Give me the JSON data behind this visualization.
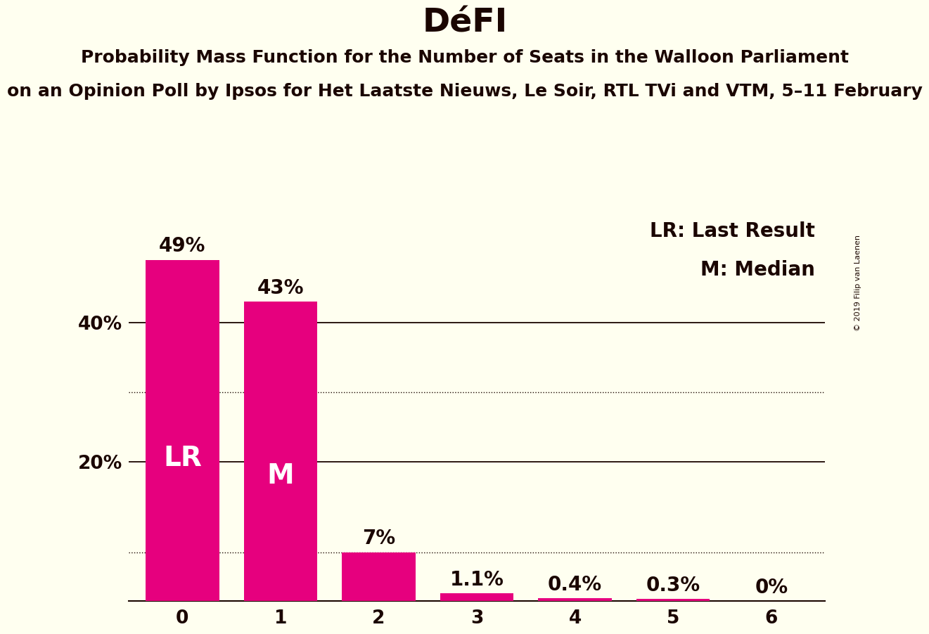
{
  "title": "DéFI",
  "subtitle1": "Probability Mass Function for the Number of Seats in the Walloon Parliament",
  "subtitle2": "on an Opinion Poll by Ipsos for Het Laatste Nieuws, Le Soir, RTL TVi and VTM, 5–11 February",
  "copyright": "© 2019 Filip van Laenen",
  "categories": [
    0,
    1,
    2,
    3,
    4,
    5,
    6
  ],
  "values": [
    49,
    43,
    7,
    1.1,
    0.4,
    0.3,
    0
  ],
  "bar_color": "#E6007E",
  "background_color": "#FFFFF0",
  "text_color": "#1a0500",
  "title_fontsize": 34,
  "subtitle1_fontsize": 18,
  "subtitle2_fontsize": 18,
  "bar_label_fontsize": 20,
  "axis_tick_fontsize": 19,
  "annotation_fontsize": 20,
  "lr_label_fontsize": 28,
  "lr_bar_index": 0,
  "median_bar_index": 1,
  "lr_label": "LR",
  "median_label": "M",
  "legend_lr": "LR: Last Result",
  "legend_m": "M: Median",
  "yticks": [
    20,
    40
  ],
  "ytick_labels": [
    "20%",
    "40%"
  ],
  "solid_grid": [
    20,
    40
  ],
  "dotted_grid": [
    7,
    30
  ],
  "ylim": [
    0,
    56
  ],
  "bar_width": 0.75,
  "copyright_fontsize": 8
}
